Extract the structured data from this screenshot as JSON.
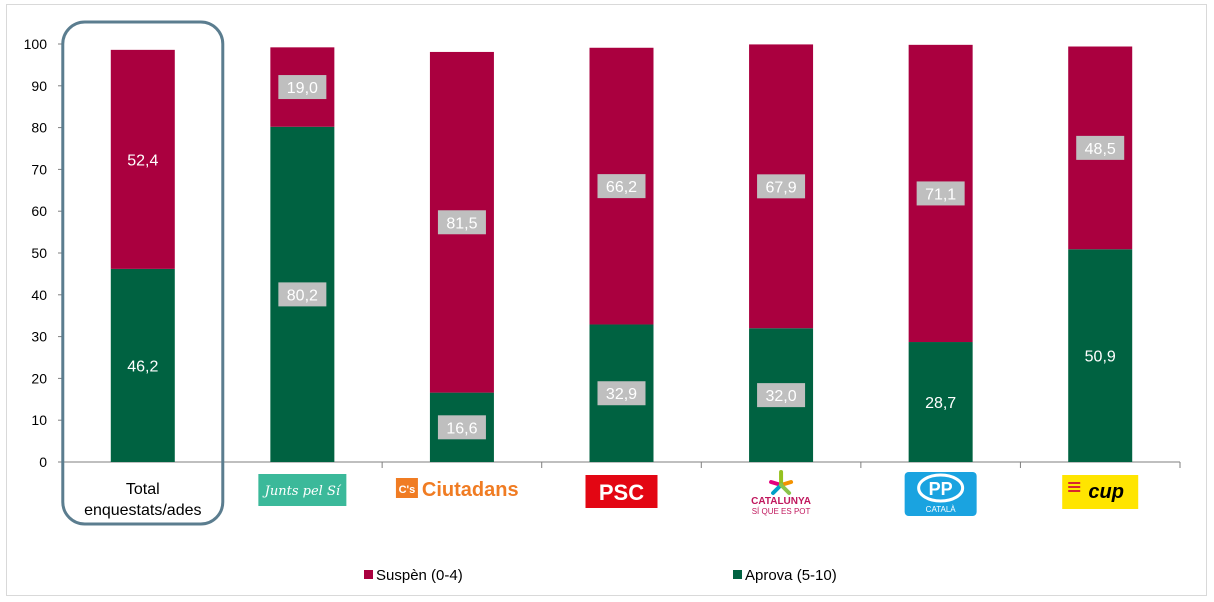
{
  "chart_data": {
    "type": "bar",
    "stacked": true,
    "categories": [
      "Total enquestats/ades",
      "Junts pel Sí",
      "Ciutadans",
      "PSC",
      "Catalunya Sí que es Pot",
      "PP Català",
      "CUP"
    ],
    "category_labels": [
      [
        "Total",
        "enquestats/ades"
      ]
    ],
    "logos": [
      null,
      {
        "text": "Junts pel Sí",
        "bg": "#3bb99a",
        "fg": "#ffffff"
      },
      {
        "text": "Ciutadans",
        "badge": "C's",
        "fg": "#f07c23"
      },
      {
        "text": "PSC",
        "bg": "#e30613",
        "fg": "#ffffff"
      },
      {
        "text": "CATALUNYA",
        "sub": "SÍ QUE ES POT",
        "fg": "#c0175d"
      },
      {
        "text": "PP",
        "sub": "CATALÀ",
        "bg": "#1aa3e0",
        "fg": "#ffffff"
      },
      {
        "text": "cup",
        "bg": "#ffe500",
        "fg": "#000000",
        "accent": "#d8262e"
      }
    ],
    "series": [
      {
        "name": "Aprova (5-10)",
        "color": "#006241",
        "values": [
          46.2,
          80.2,
          16.6,
          32.9,
          32.0,
          28.7,
          50.9
        ],
        "labels": [
          "46,2",
          "80,2",
          "16,6",
          "32,9",
          "32,0",
          "28,7",
          "50,9"
        ],
        "boxed": [
          false,
          true,
          true,
          true,
          true,
          false,
          false
        ]
      },
      {
        "name": "Suspèn (0-4)",
        "color": "#aa003f",
        "values": [
          52.4,
          19.0,
          81.5,
          66.2,
          67.9,
          71.1,
          48.5
        ],
        "labels": [
          "52,4",
          "19,0",
          "81,5",
          "66,2",
          "67,9",
          "71,1",
          "48,5"
        ],
        "boxed": [
          false,
          true,
          true,
          true,
          true,
          true,
          true
        ]
      }
    ],
    "yticks": [
      0,
      10,
      20,
      30,
      40,
      50,
      60,
      70,
      80,
      90,
      100
    ],
    "ylim": [
      0,
      100
    ],
    "legend": [
      {
        "name": "Suspèn (0-4)",
        "color": "#aa003f"
      },
      {
        "name": "Aprova (5-10)",
        "color": "#006241"
      }
    ],
    "legend_position": "bottom",
    "highlight": "Total enquestats/ades",
    "grid": false
  }
}
